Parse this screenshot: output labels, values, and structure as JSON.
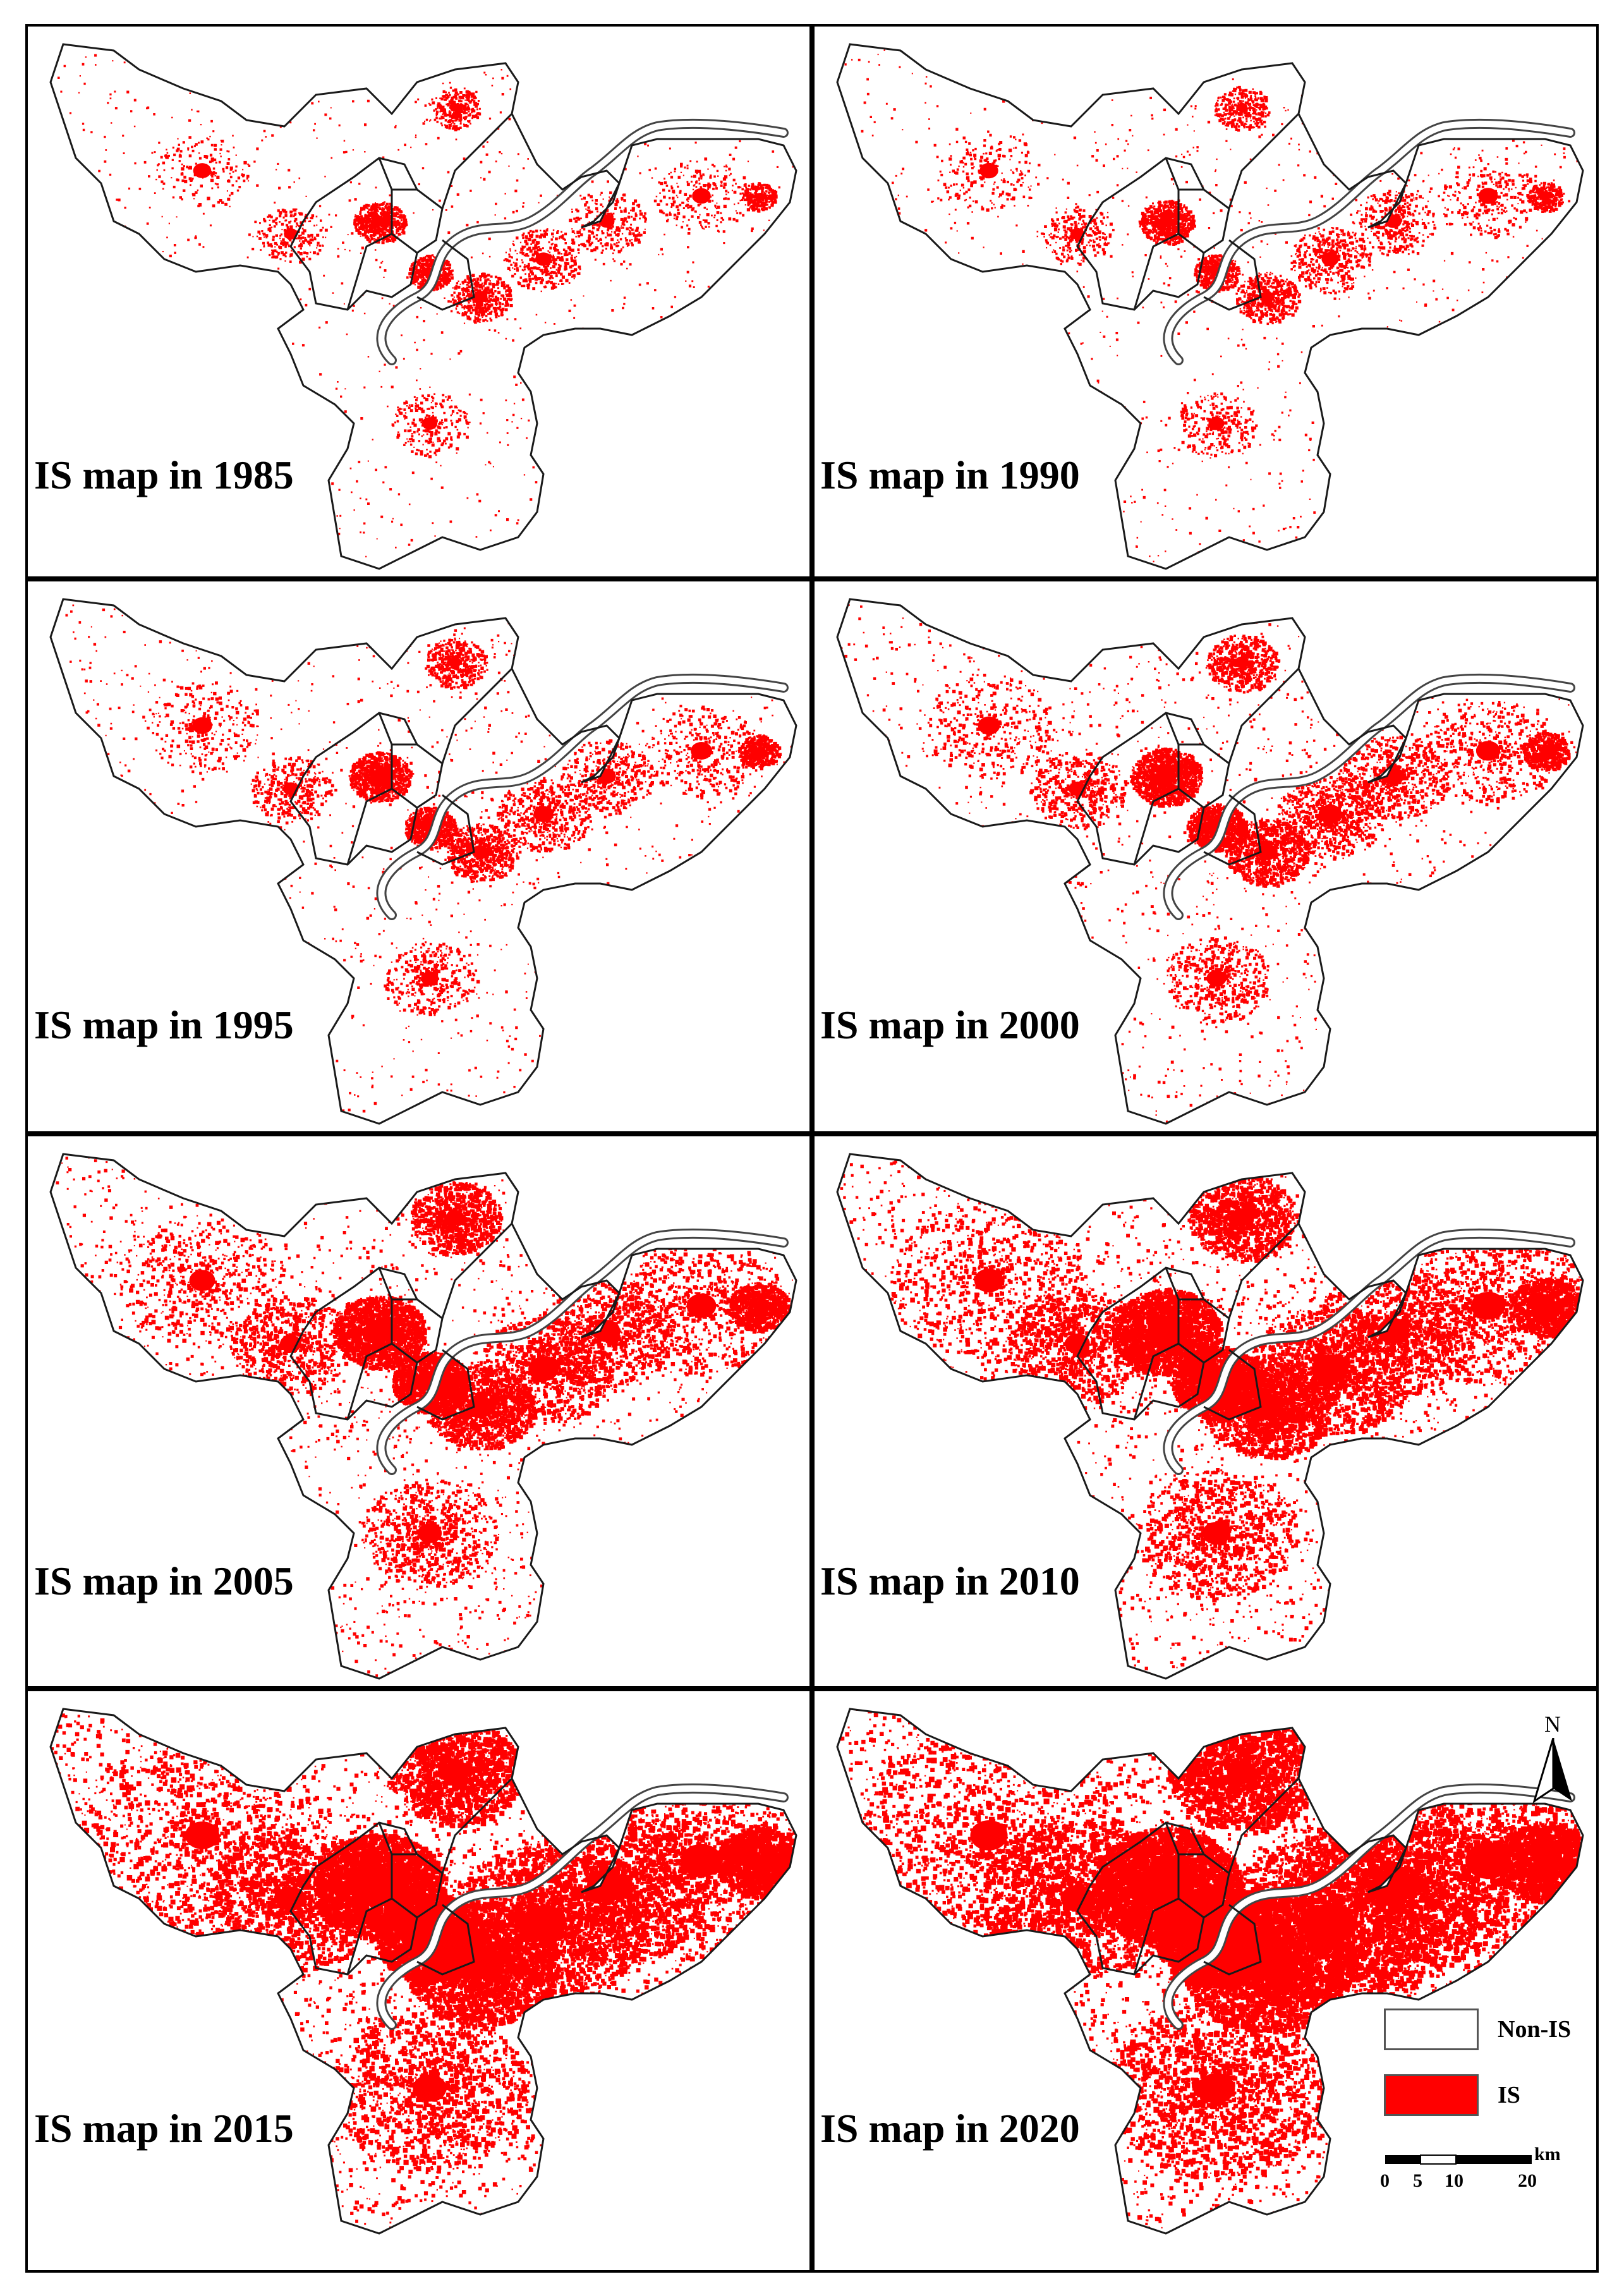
{
  "panels": [
    {
      "caption": "IS map in 1985",
      "year": 1985,
      "is_intensity": 0.06
    },
    {
      "caption": "IS map in 1990",
      "year": 1990,
      "is_intensity": 0.08
    },
    {
      "caption": "IS map in 1995",
      "year": 1995,
      "is_intensity": 0.14
    },
    {
      "caption": "IS map in 2000",
      "year": 2000,
      "is_intensity": 0.22
    },
    {
      "caption": "IS map in 2005",
      "year": 2005,
      "is_intensity": 0.38
    },
    {
      "caption": "IS map in 2010",
      "year": 2010,
      "is_intensity": 0.52
    },
    {
      "caption": "IS map in 2015",
      "year": 2015,
      "is_intensity": 0.72
    },
    {
      "caption": "IS map in 2020",
      "year": 2020,
      "is_intensity": 0.85
    }
  ],
  "legend": {
    "items": [
      {
        "label": "Non-IS",
        "color": "#ffffff"
      },
      {
        "label": "IS",
        "color": "#ff0000"
      }
    ],
    "north_label": "N",
    "scale_unit": "km",
    "scale_ticks": [
      "0",
      "5",
      "10",
      "20"
    ]
  },
  "colors": {
    "is": "#ff0000",
    "boundary": "#1a1a1a",
    "river_bank": "#444444",
    "frame": "#000000"
  }
}
